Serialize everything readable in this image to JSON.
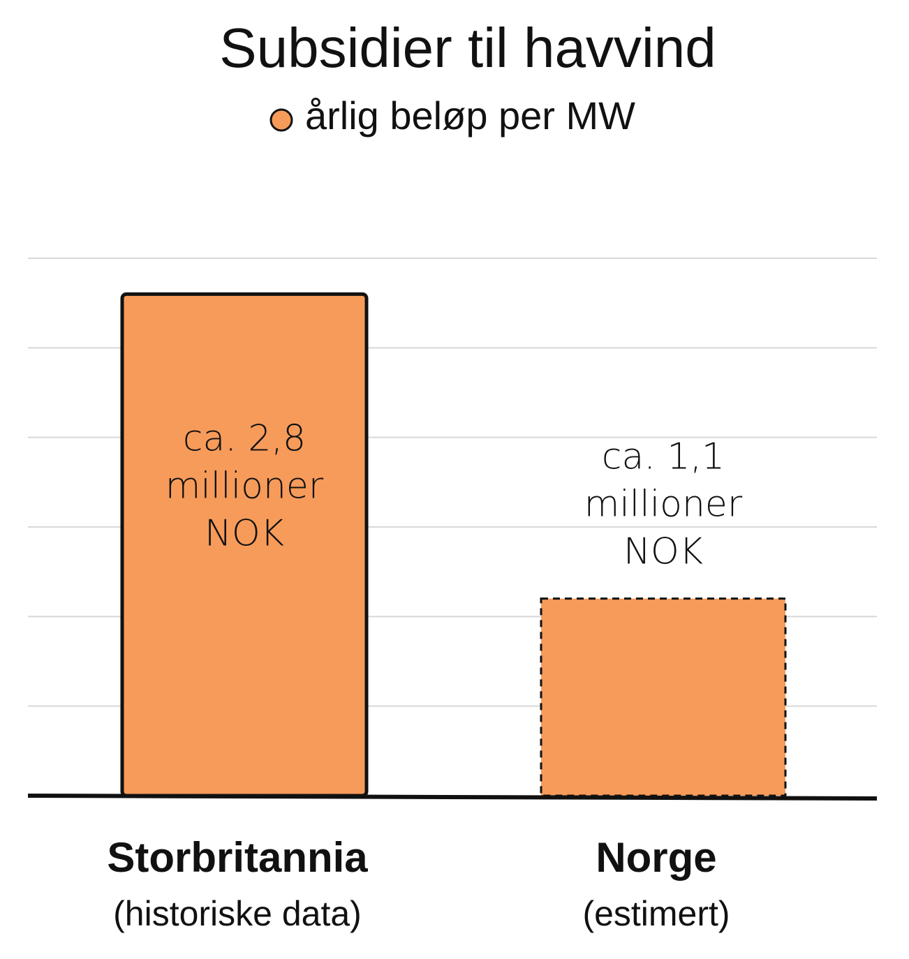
{
  "chart_data": {
    "type": "bar",
    "title": "Subsidier til havvind",
    "categories": [
      "Storbritannia",
      "Norge"
    ],
    "category_notes": [
      "(historiske data)",
      "(estimert)"
    ],
    "series": [
      {
        "name": "årlig beløp per MW",
        "color": "#f79b5a",
        "values": [
          2.8,
          1.1
        ],
        "value_labels": [
          "ca. 2,8\nmillioner\nNOK",
          "ca. 1,1\nmillioner\nNOK"
        ],
        "border_styles": [
          "solid",
          "dashed"
        ]
      }
    ],
    "ylim": [
      0,
      3
    ],
    "yticks": [
      0,
      0.5,
      1,
      1.5,
      2,
      2.5,
      3
    ],
    "grid": true
  }
}
